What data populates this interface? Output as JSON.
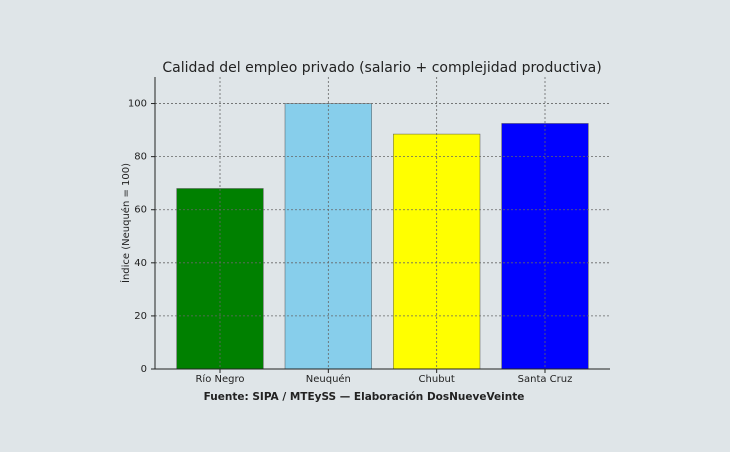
{
  "chart_data": {
    "type": "bar",
    "title": "Calidad del empleo privado (salario + complejidad productiva)",
    "y_label": "Índice (Neuquén = 100)",
    "source": "Fuente: SIPA / MTEySS — Elaboración DosNueveVeinte",
    "categories": [
      "Río Negro",
      "Neuquén",
      "Chubut",
      "Santa Cruz"
    ],
    "values": [
      68,
      100,
      88.5,
      92.5
    ],
    "colors": [
      "#008000",
      "#87ceeb",
      "#ffff00",
      "#0000ff"
    ],
    "ylim": [
      0,
      110
    ],
    "yticks": [
      0,
      20,
      40,
      60,
      80,
      100
    ],
    "grid": true
  }
}
